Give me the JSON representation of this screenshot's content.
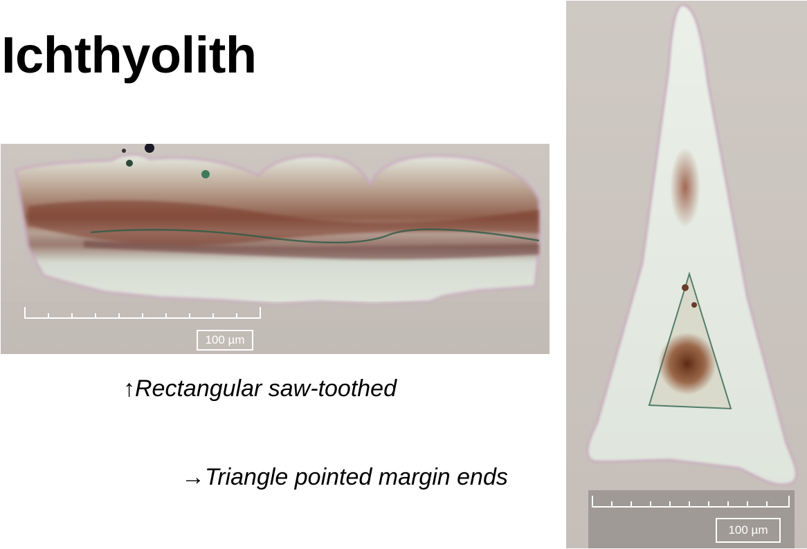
{
  "title": "Ichthyolith",
  "images": {
    "rectangular": {
      "scale_label": "100 µm"
    },
    "triangle": {
      "scale_label": "100 µm"
    }
  },
  "captions": {
    "rectangular": "↑Rectangular saw-toothed",
    "triangle": "→Triangle pointed margin ends"
  }
}
